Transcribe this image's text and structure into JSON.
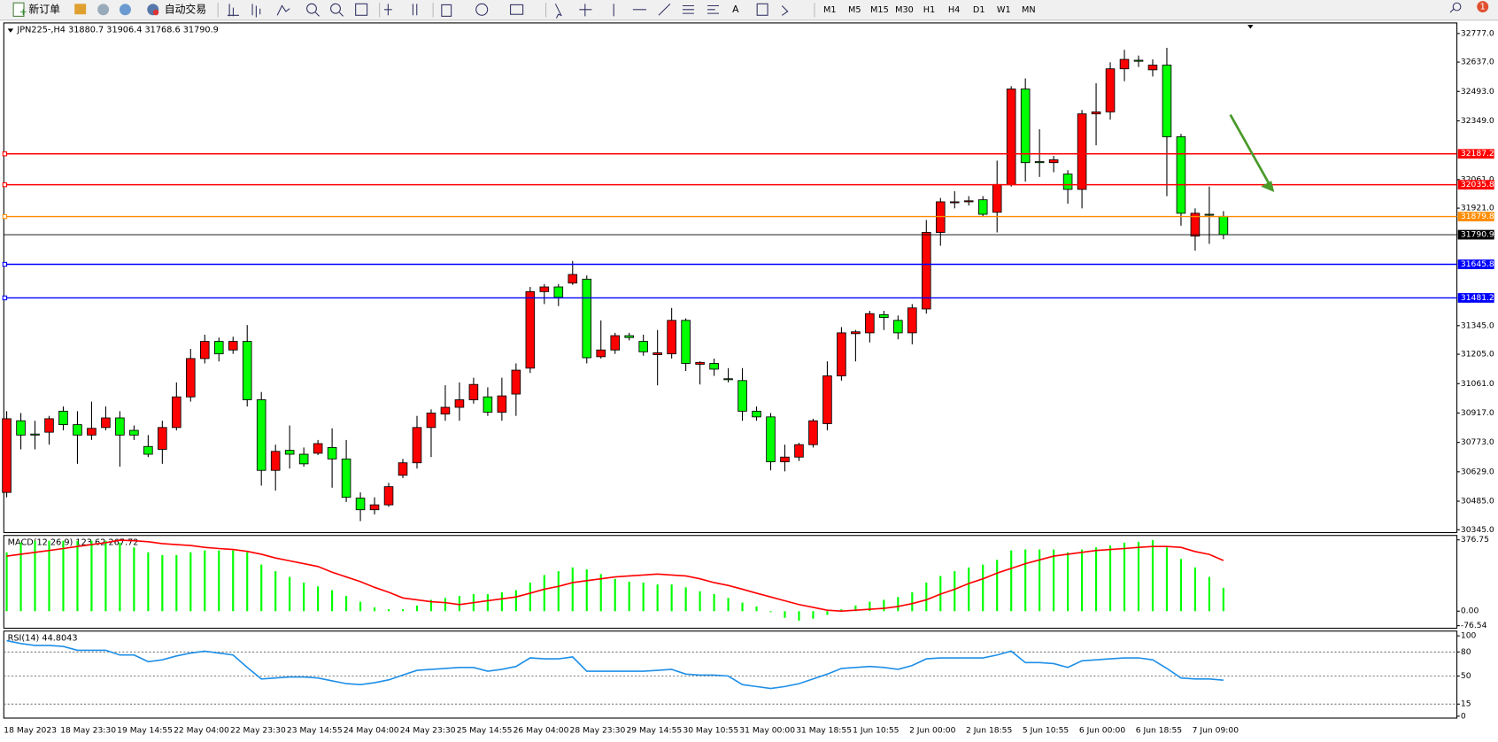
{
  "toolbar": {
    "new_order": "新订单",
    "auto_trading": "自动交易",
    "timeframes": [
      "M1",
      "M5",
      "M15",
      "M30",
      "H1",
      "H4",
      "D1",
      "W1",
      "MN"
    ],
    "notifications": 1
  },
  "chart_data": [
    {
      "type": "candlestick",
      "symbol": "JPN225-,H4",
      "up_color": "#ff0000",
      "down_color": "#00ff00",
      "categories": [
        "18 May 2023",
        null,
        null,
        null,
        "18 May 23:30",
        null,
        null,
        null,
        "19 May 14:55",
        null,
        null,
        null,
        "22 May 04:00",
        null,
        null,
        null,
        "22 May 23:30",
        null,
        null,
        null,
        "23 May 14:55",
        null,
        null,
        null,
        "24 May 04:00",
        null,
        null,
        null,
        "24 May 23:30",
        null,
        null,
        null,
        "25 May 14:55",
        null,
        null,
        null,
        "26 May 04:00",
        null,
        null,
        null,
        "28 May 23:30",
        null,
        null,
        null,
        "29 May 14:55",
        null,
        null,
        null,
        "30 May 10:55",
        null,
        null,
        null,
        "31 May 00:00",
        null,
        null,
        null,
        "31 May 18:55",
        null,
        null,
        null,
        "1 Jun 10:55",
        null,
        null,
        null,
        "2 Jun 00:00",
        null,
        null,
        null,
        "2 Jun 18:55",
        null,
        null,
        null,
        "5 Jun 10:55",
        null,
        null,
        null,
        "6 Jun 00:00",
        null,
        null,
        null,
        "6 Jun 18:55",
        null,
        null,
        null,
        "7 Jun 09:00",
        null,
        null
      ],
      "open": [
        30528,
        30879,
        30814,
        30823,
        30926,
        30860,
        30809,
        30846,
        30893,
        30832,
        30753,
        30739,
        30846,
        30996,
        31184,
        31268,
        31226,
        31268,
        30982,
        30636,
        30734,
        30715,
        30720,
        30748,
        30692,
        30500,
        30443,
        30467,
        30612,
        30673,
        30846,
        30912,
        30945,
        30982,
        30996,
        30921,
        31010,
        31137,
        31512,
        31535,
        31554,
        31573,
        31193,
        31226,
        31296,
        31268,
        31203,
        31207,
        31371,
        31156,
        31160,
        31085,
        31076,
        30926,
        30898,
        30678,
        30701,
        30762,
        30865,
        31099,
        31306,
        31310,
        31399,
        31371,
        31310,
        31427,
        31802,
        31948,
        31952,
        31962,
        31901,
        32037,
        32505,
        32149,
        32144,
        32088,
        32013,
        32383,
        32393,
        32604,
        32646,
        32599,
        32622,
        32271,
        31784,
        31891,
        31880.7
      ],
      "high": [
        30926,
        30917,
        30879,
        30903,
        30949,
        30926,
        30973,
        30949,
        30926,
        30856,
        30809,
        30879,
        31067,
        31231,
        31301,
        31287,
        31291,
        31348,
        31020,
        30762,
        30856,
        30748,
        30785,
        30842,
        30785,
        30528,
        30504,
        30575,
        30692,
        30903,
        30935,
        31053,
        31067,
        31090,
        31043,
        31090,
        31160,
        31535,
        31549,
        31549,
        31662,
        31591,
        31371,
        31310,
        31310,
        31301,
        31324,
        31432,
        31381,
        31170,
        31184,
        31137,
        31137,
        30949,
        30917,
        30762,
        30771,
        30889,
        31170,
        31338,
        31324,
        31418,
        31418,
        31395,
        31451,
        31863,
        31971,
        32004,
        31980,
        31980,
        32154,
        32519,
        32557,
        32308,
        32177,
        32107,
        32402,
        32533,
        32636,
        32697,
        32669,
        32650,
        32707,
        32285,
        31920,
        32027,
        31906.4
      ],
      "low": [
        30504,
        30739,
        30739,
        30762,
        30832,
        30668,
        30785,
        30832,
        30654,
        30785,
        30701,
        30668,
        30832,
        30973,
        31160,
        31170,
        31207,
        30949,
        30561,
        30537,
        30645,
        30654,
        30711,
        30551,
        30481,
        30387,
        30420,
        30457,
        30598,
        30645,
        30701,
        30879,
        30879,
        30963,
        30903,
        30879,
        30903,
        31113,
        31451,
        31441,
        31545,
        31160,
        31184,
        31207,
        31273,
        31198,
        31053,
        31184,
        31123,
        31057,
        31099,
        31067,
        30879,
        30879,
        30636,
        30631,
        30682,
        30748,
        30832,
        31076,
        31170,
        31263,
        31324,
        31278,
        31254,
        31404,
        31737,
        31920,
        31934,
        31882,
        31802,
        32027,
        32051,
        32074,
        32097,
        31943,
        31920,
        32229,
        32355,
        32543,
        32613,
        32566,
        31980,
        31835,
        31713,
        31746,
        31768.6
      ],
      "close": [
        30889,
        30809,
        30809,
        30889,
        30860,
        30809,
        30842,
        30893,
        30809,
        30809,
        30715,
        30846,
        30996,
        31184,
        31268,
        31207,
        31268,
        30982,
        30636,
        30729,
        30715,
        30668,
        30767,
        30692,
        30504,
        30443,
        30467,
        30556,
        30673,
        30846,
        30917,
        30945,
        30982,
        31057,
        30921,
        31001,
        31127,
        31512,
        31535,
        31484,
        31596,
        31188,
        31226,
        31296,
        31287,
        31217,
        31212,
        31371,
        31160,
        31165,
        31132,
        31081,
        30926,
        30898,
        30678,
        30701,
        30762,
        30879,
        31099,
        31310,
        31315,
        31404,
        31385,
        31310,
        31432,
        31802,
        31952,
        31952,
        31957,
        31891,
        32037,
        32505,
        32144,
        32144,
        32158,
        32013,
        32383,
        32393,
        32604,
        32650,
        32641,
        32622,
        32271,
        31896,
        31896,
        31887,
        31790.9
      ],
      "ylim": [
        30331,
        32824
      ],
      "yticks": [
        {
          "value": 32777,
          "label": "32777.0"
        },
        {
          "value": 32637,
          "label": "32637.0"
        },
        {
          "value": 32493,
          "label": "32493.0"
        },
        {
          "value": 32349,
          "label": "32349.0"
        },
        {
          "value": 32061,
          "label": "32061.0"
        },
        {
          "value": 31921,
          "label": "31921.0"
        },
        {
          "value": 31345,
          "label": "31345.0"
        },
        {
          "value": 31205,
          "label": "31205.0"
        },
        {
          "value": 31061,
          "label": "31061.0"
        },
        {
          "value": 30917,
          "label": "30917.0"
        },
        {
          "value": 30773,
          "label": "30773.0"
        },
        {
          "value": 30629,
          "label": "30629.0"
        },
        {
          "value": 30485,
          "label": "30485.0"
        },
        {
          "value": 30345,
          "label": "30345.0"
        }
      ],
      "hlines": [
        {
          "value": 32187.2,
          "color": "#ff0000"
        },
        {
          "value": 32035.8,
          "color": "#ff0000"
        },
        {
          "value": 31879.8,
          "color": "#ff8c00"
        },
        {
          "value": 31645.8,
          "color": "#0000ff"
        },
        {
          "value": 31481.2,
          "color": "#0000ff"
        }
      ]
    },
    {
      "type": "macd",
      "title": "MACD(12,26,9)",
      "color": "#00ff00",
      "signal_color": "#ff0000",
      "values": [
        311,
        362,
        372,
        372,
        372,
        372,
        372,
        372,
        362,
        337,
        311,
        296,
        296,
        311,
        321,
        321,
        321,
        311,
        246,
        211,
        181,
        151,
        131,
        111,
        80,
        50,
        20,
        10,
        10,
        30,
        60,
        70,
        80,
        90,
        90,
        100,
        111,
        151,
        191,
        211,
        231,
        221,
        196,
        171,
        156,
        151,
        141,
        141,
        126,
        105,
        90,
        70,
        45,
        25,
        -5,
        -35,
        -50,
        -40,
        -20,
        10,
        30,
        50,
        60,
        75,
        100,
        151,
        186,
        211,
        231,
        246,
        271,
        321,
        326,
        326,
        326,
        311,
        326,
        337,
        347,
        362,
        367,
        376,
        337,
        276,
        231,
        181,
        123.62
      ],
      "signal": [
        291,
        301,
        311,
        321,
        331,
        342,
        352,
        362,
        375,
        372,
        367,
        357,
        352,
        347,
        337,
        331,
        326,
        316,
        301,
        281,
        266,
        251,
        236,
        206,
        181,
        156,
        126,
        100,
        70,
        60,
        50,
        45,
        35,
        45,
        55,
        65,
        75,
        95,
        116,
        131,
        151,
        161,
        171,
        181,
        186,
        191,
        196,
        191,
        186,
        171,
        151,
        136,
        116,
        95,
        75,
        55,
        35,
        20,
        5,
        0,
        5,
        10,
        15,
        25,
        40,
        60,
        90,
        116,
        146,
        171,
        201,
        226,
        251,
        271,
        291,
        301,
        311,
        321,
        326,
        331,
        337,
        342,
        342,
        337,
        315,
        300,
        267.72
      ],
      "ylim": [
        -85,
        395
      ],
      "yticks": [
        {
          "value": 376.75,
          "label": "376.75"
        },
        {
          "value": 0,
          "label": "0.00"
        },
        {
          "value": -76.54,
          "label": "-76.54"
        }
      ]
    },
    {
      "type": "line",
      "title": "RSI(14)",
      "color": "#1e8fe8",
      "values": [
        94.0,
        90.5,
        88.1,
        88.1,
        86.9,
        82.1,
        82.1,
        82.1,
        76.2,
        76.2,
        67.9,
        70.2,
        75.0,
        78.6,
        81.0,
        78.6,
        76.2,
        60.7,
        46.4,
        47.6,
        48.8,
        48.8,
        47.6,
        44.0,
        40.5,
        39.3,
        41.7,
        45.2,
        51.2,
        57.1,
        58.3,
        59.5,
        60.7,
        60.7,
        56.0,
        58.3,
        61.9,
        72.6,
        71.4,
        71.4,
        73.8,
        56.0,
        56.0,
        56.0,
        56.0,
        56.0,
        57.1,
        58.3,
        52.4,
        51.2,
        51.2,
        50.0,
        39.3,
        36.9,
        34.5,
        36.9,
        40.5,
        46.4,
        52.4,
        59.5,
        60.7,
        61.9,
        60.7,
        58.3,
        63.1,
        71.4,
        72.6,
        72.6,
        72.6,
        72.6,
        76.2,
        81.0,
        66.7,
        66.7,
        65.5,
        60.7,
        69.0,
        70.2,
        71.4,
        72.6,
        72.6,
        70.2,
        59.5,
        47.6,
        46.4,
        46.4,
        44.8043
      ],
      "ylim": [
        -2.4,
        104.8
      ],
      "yticks": [
        100,
        80,
        50,
        15,
        0
      ],
      "levels": [
        80,
        50,
        15
      ]
    }
  ]
}
